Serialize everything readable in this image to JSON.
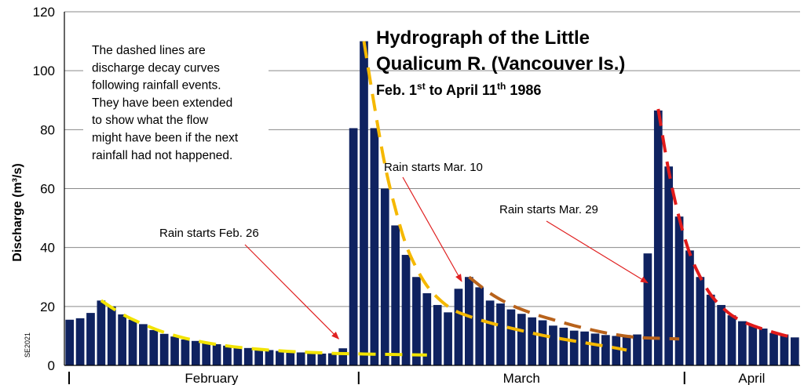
{
  "chart_data": {
    "type": "bar",
    "title_line1": "Hydrograph of the Little",
    "title_line2": "Qualicum R. (Vancouver Is.)",
    "subtitle": {
      "prefix": "Feb. 1",
      "sup1": "st",
      "middle": " to April 11",
      "sup2": "th",
      "suffix": " 1986"
    },
    "ylabel": "Discharge (m³/s)",
    "ylim": [
      0,
      120
    ],
    "yticks": [
      0,
      20,
      40,
      60,
      80,
      100,
      120
    ],
    "grid": true,
    "months": [
      "February",
      "March",
      "April"
    ],
    "month_start_day": [
      1,
      29,
      60
    ],
    "x": [
      1,
      2,
      3,
      4,
      5,
      6,
      7,
      8,
      9,
      10,
      11,
      12,
      13,
      14,
      15,
      16,
      17,
      18,
      19,
      20,
      21,
      22,
      23,
      24,
      25,
      26,
      27,
      28,
      29,
      30,
      31,
      32,
      33,
      34,
      35,
      36,
      37,
      38,
      39,
      40,
      41,
      42,
      43,
      44,
      45,
      46,
      47,
      48,
      49,
      50,
      51,
      52,
      53,
      54,
      55,
      56,
      57,
      58,
      59,
      60,
      61,
      62,
      63,
      64,
      65,
      66,
      67,
      68,
      69,
      70
    ],
    "values": [
      15.5,
      16,
      17.8,
      22,
      20,
      17.3,
      15.5,
      14,
      12,
      10.7,
      9.8,
      8.8,
      8.3,
      7.8,
      7.2,
      6.7,
      6.3,
      5.9,
      5.5,
      5.2,
      4.9,
      4.6,
      4.4,
      4.2,
      4,
      4.1,
      5.8,
      80.5,
      110,
      80.5,
      60,
      47.5,
      37.5,
      30,
      24.5,
      20.5,
      18,
      26,
      30,
      26.5,
      22,
      21,
      19,
      17.5,
      16.3,
      15.3,
      13.5,
      12.8,
      11.8,
      11.5,
      10.8,
      10.3,
      10,
      10.3,
      10.5,
      38,
      86.5,
      67.5,
      50.5,
      39,
      30,
      24,
      20.5,
      17,
      15,
      13.5,
      12.5,
      11,
      10.5,
      9.5
    ],
    "series": [
      {
        "color": "#0f2260",
        "kind": "bars"
      },
      {
        "color": "#f2e300",
        "kind": "decay",
        "x": [
          4,
          6,
          8,
          10,
          12,
          14,
          16,
          18,
          20,
          22,
          24,
          26,
          28,
          30,
          32,
          35
        ],
        "values": [
          22,
          17.4,
          14,
          11.2,
          9.2,
          7.7,
          6.6,
          5.8,
          5.2,
          4.7,
          4.4,
          4.1,
          3.95,
          3.8,
          3.7,
          3.5
        ]
      },
      {
        "color": "#f5b800",
        "kind": "decay",
        "x": [
          29,
          30,
          31,
          32,
          33,
          34,
          35,
          36,
          37,
          38,
          40,
          42,
          44,
          46,
          48,
          50,
          52,
          54
        ],
        "values": [
          110,
          88,
          68,
          53,
          41,
          33,
          27,
          23,
          20,
          18,
          15.5,
          13.5,
          11.8,
          10.2,
          8.9,
          7.7,
          6.5,
          5.2
        ]
      },
      {
        "color": "#b8621b",
        "kind": "decay",
        "x": [
          39,
          41,
          43,
          45,
          47,
          49,
          51,
          53,
          55,
          57,
          59
        ],
        "values": [
          30,
          24.5,
          20.5,
          17.7,
          15.5,
          13.5,
          11.8,
          10.4,
          9.5,
          9.2,
          9
        ]
      },
      {
        "color": "#e11b1b",
        "kind": "decay",
        "x": [
          57,
          58,
          59,
          60,
          61,
          62,
          63,
          64,
          65,
          66,
          67,
          68,
          69,
          70
        ],
        "values": [
          87,
          66,
          50,
          38,
          30,
          24,
          20,
          17,
          15,
          13.5,
          12.3,
          11.2,
          10.2,
          9.4
        ]
      }
    ],
    "annotations": [
      {
        "text": "Rain starts Feb. 26",
        "target_day": 26.6,
        "target_value": 9
      },
      {
        "text": "Rain starts Mar. 10",
        "target_day": 38.3,
        "target_value": 28.5
      },
      {
        "text": "Rain starts Mar. 29",
        "target_day": 56,
        "target_value": 28
      }
    ],
    "note_lines": [
      "The dashed lines are",
      "discharge decay curves",
      "following rainfall events.",
      "They have been extended",
      "to show what the flow",
      "might have been if the next",
      "rainfall had not happened."
    ],
    "credit": "SE2021"
  }
}
